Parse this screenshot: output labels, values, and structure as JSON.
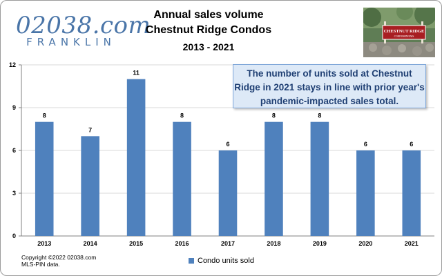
{
  "logo": {
    "main": "02038.com",
    "sub": "FRANKLIN"
  },
  "photo": {
    "sign_text": "CHESTNUT RIDGE",
    "sign_subtext": "CONDOMINIUMS"
  },
  "callout": {
    "text": "The number of units sold at Chestnut Ridge in 2021 stays in line with prior year's pandemic-impacted sales total."
  },
  "footer": {
    "copyright_line1": "Copyright ©2022  02038.com",
    "copyright_line2": "MLS-PIN data."
  },
  "colors": {
    "bar": "#4f81bd",
    "grid": "#d9d9d9",
    "callout_bg": "#dde9f7",
    "logo": "#4a75a8"
  },
  "chart_data": {
    "type": "bar",
    "title": "Annual sales volume",
    "subtitle": "Chestnut Ridge Condos",
    "period": "2013 - 2021",
    "categories": [
      "2013",
      "2014",
      "2015",
      "2016",
      "2017",
      "2018",
      "2019",
      "2020",
      "2021"
    ],
    "series": [
      {
        "name": "Condo units sold",
        "values": [
          8,
          7,
          11,
          8,
          6,
          8,
          8,
          6,
          6
        ]
      }
    ],
    "ylim": [
      0,
      12
    ],
    "yticks": [
      0,
      3,
      6,
      9,
      12
    ],
    "grid": true,
    "legend_position": "bottom"
  }
}
